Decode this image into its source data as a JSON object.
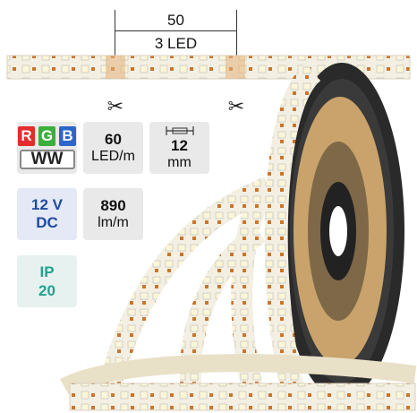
{
  "dimension": {
    "length": "50",
    "leds": "3 LED"
  },
  "tiles": {
    "color_r": "R",
    "color_g": "G",
    "color_b": "B",
    "color_ww": "WW",
    "density_value": "60",
    "density_unit": "LED/m",
    "width_value": "12",
    "width_unit": "mm",
    "voltage_value": "12 V",
    "voltage_unit": "DC",
    "flux_value": "890",
    "flux_unit": "lm/m",
    "ip_label": "IP",
    "ip_value": "20"
  },
  "colors": {
    "red": "#e52b2b",
    "green": "#3cae3c",
    "blue": "#2c66c8",
    "voltage_text": "#1f4aa0",
    "ip_text": "#21a38e",
    "reel": "#252525",
    "strip": "#f3efe2"
  },
  "icons": [
    "scissors-icon",
    "scissors-icon",
    "strip-width-icon"
  ]
}
